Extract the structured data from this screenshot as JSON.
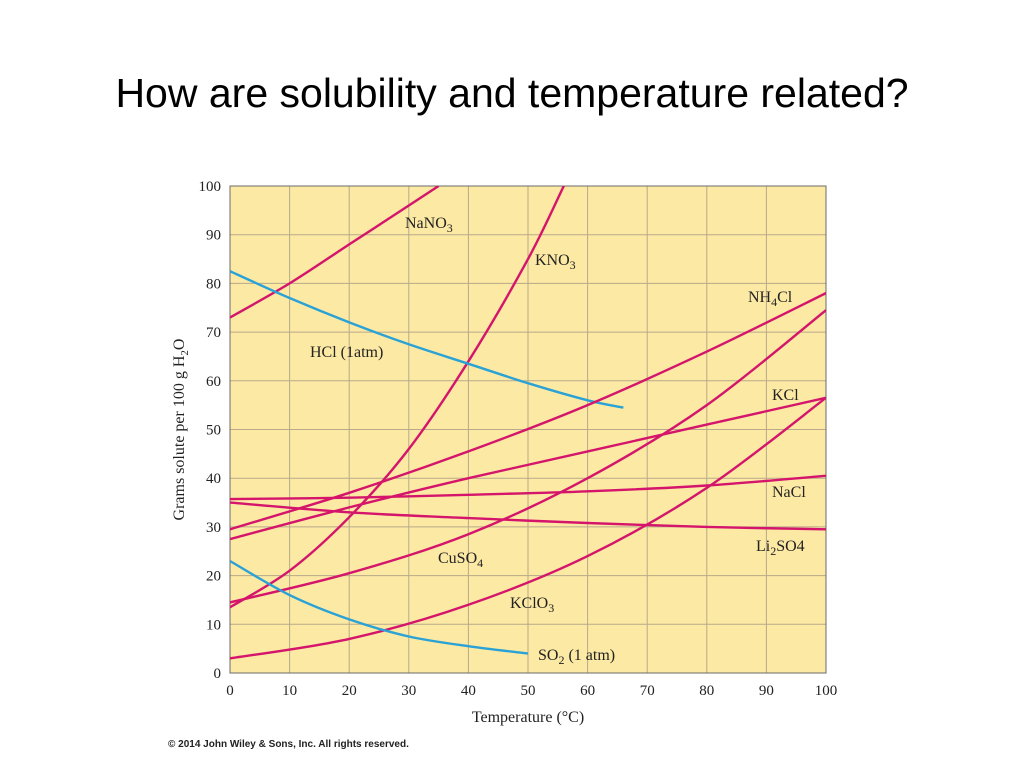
{
  "slide": {
    "title": "How are solubility and temperature related?",
    "copyright": "© 2014 John Wiley & Sons, Inc. All rights reserved."
  },
  "chart_data": {
    "type": "line",
    "xlabel": "Temperature (°C)",
    "ylabel_parts": [
      "Grams solute per 100 g H",
      "2",
      "O"
    ],
    "xlim": [
      0,
      100
    ],
    "ylim": [
      0,
      100
    ],
    "x_ticks": [
      0,
      10,
      20,
      30,
      40,
      50,
      60,
      70,
      80,
      90,
      100
    ],
    "y_ticks": [
      0,
      10,
      20,
      30,
      40,
      50,
      60,
      70,
      80,
      90,
      100
    ],
    "grid": true,
    "background_color": "#fce9a4",
    "series": [
      {
        "key": "nano3",
        "label_parts": [
          "NaNO",
          "3",
          ""
        ],
        "color": "#d4156b",
        "x": [
          0,
          10,
          20,
          30,
          35
        ],
        "y": [
          73,
          80,
          88,
          96,
          100
        ]
      },
      {
        "key": "kno3",
        "label_parts": [
          "KNO",
          "3",
          ""
        ],
        "color": "#d4156b",
        "x": [
          0,
          10,
          20,
          30,
          40,
          50,
          56
        ],
        "y": [
          13.5,
          21,
          32,
          46,
          64,
          85,
          100
        ]
      },
      {
        "key": "hcl",
        "label_parts": [
          "HCl (1atm)",
          "",
          ""
        ],
        "color": "#2aa2d6",
        "x": [
          0,
          10,
          20,
          30,
          40,
          50,
          60,
          66
        ],
        "y": [
          82.5,
          77,
          72,
          67.5,
          63.5,
          59.5,
          56,
          54.5
        ]
      },
      {
        "key": "nh4cl",
        "label_parts": [
          "NH",
          "4",
          "Cl"
        ],
        "color": "#d4156b",
        "x": [
          0,
          20,
          40,
          60,
          80,
          100
        ],
        "y": [
          29.5,
          37,
          45.5,
          55,
          66,
          78
        ]
      },
      {
        "key": "kcl",
        "label_parts": [
          "KCl",
          "",
          ""
        ],
        "color": "#d4156b",
        "x": [
          0,
          20,
          40,
          60,
          80,
          100
        ],
        "y": [
          27.5,
          34,
          40,
          45.5,
          51,
          56.5
        ]
      },
      {
        "key": "nacl",
        "label_parts": [
          "NaCl",
          "",
          ""
        ],
        "color": "#d4156b",
        "x": [
          0,
          20,
          40,
          60,
          80,
          100
        ],
        "y": [
          35.7,
          36,
          36.6,
          37.3,
          38.5,
          40.5
        ]
      },
      {
        "key": "li2so4",
        "label_parts": [
          "Li",
          "2",
          "SO4"
        ],
        "color": "#d4156b",
        "x": [
          0,
          20,
          40,
          60,
          80,
          100
        ],
        "y": [
          35,
          33,
          31.8,
          30.8,
          30,
          29.5
        ]
      },
      {
        "key": "cuso4",
        "label_parts": [
          "CuSO",
          "4",
          ""
        ],
        "color": "#d4156b",
        "x": [
          0,
          20,
          40,
          60,
          80,
          100
        ],
        "y": [
          14.5,
          20.5,
          28.5,
          40,
          55,
          74.5
        ]
      },
      {
        "key": "kclo3",
        "label_parts": [
          "KClO",
          "3",
          ""
        ],
        "color": "#d4156b",
        "x": [
          0,
          20,
          40,
          60,
          80,
          100
        ],
        "y": [
          3,
          7,
          14,
          24,
          38,
          56.5
        ]
      },
      {
        "key": "so2",
        "label_parts": [
          "SO",
          "2",
          " (1 atm)"
        ],
        "color": "#2aa2d6",
        "x": [
          0,
          10,
          20,
          30,
          40,
          50
        ],
        "y": [
          23,
          16,
          11,
          7.5,
          5.5,
          4
        ]
      }
    ]
  }
}
